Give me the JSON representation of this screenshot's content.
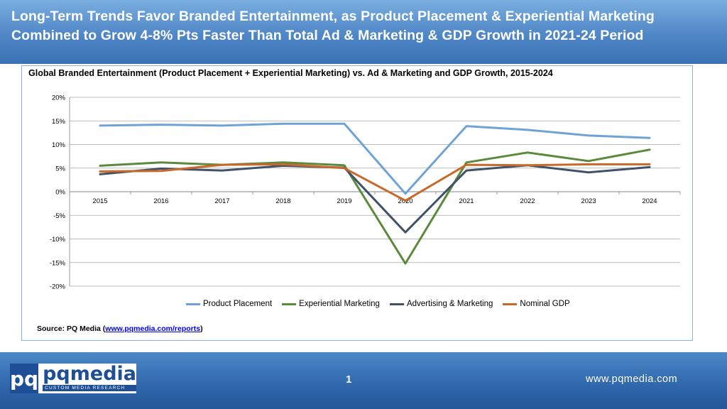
{
  "header": {
    "title": "Long-Term Trends Favor Branded Entertainment, as Product Placement & Experiential Marketing Combined to Grow 4-8% Pts Faster Than Total Ad & Marketing & GDP Growth in 2021-24 Period"
  },
  "chart_data": {
    "type": "line",
    "title": "Global Branded Entertainment (Product Placement + Experiential Marketing) vs. Ad & Marketing and GDP Growth, 2015-2024",
    "xlabel": "",
    "ylabel": "",
    "categories": [
      "2015",
      "2016",
      "2017",
      "2018",
      "2019",
      "2020",
      "2021",
      "2022",
      "2023",
      "2024"
    ],
    "ylim": [
      -20,
      20
    ],
    "yticks": [
      20,
      15,
      10,
      5,
      0,
      -5,
      -10,
      -15,
      -20
    ],
    "ytick_labels": [
      "20%",
      "15%",
      "10%",
      "5%",
      "0%",
      "-5%",
      "-10%",
      "-15%",
      "-20%"
    ],
    "grid": true,
    "legend_position": "bottom",
    "series": [
      {
        "name": "Product Placement",
        "color": "#6fa3d6",
        "values": [
          14.0,
          14.2,
          14.0,
          14.4,
          14.4,
          -0.4,
          13.9,
          13.1,
          11.9,
          11.4
        ]
      },
      {
        "name": "Experiential Marketing",
        "color": "#5b8a3c",
        "values": [
          5.5,
          6.2,
          5.7,
          6.2,
          5.6,
          -15.2,
          6.2,
          8.3,
          6.5,
          8.9
        ]
      },
      {
        "name": "Advertising & Marketing",
        "color": "#3f5269",
        "values": [
          3.7,
          4.9,
          4.5,
          5.5,
          5.1,
          -8.6,
          4.5,
          5.6,
          4.1,
          5.2
        ]
      },
      {
        "name": "Nominal GDP",
        "color": "#c8692c",
        "values": [
          4.3,
          4.4,
          5.7,
          5.8,
          5.0,
          -1.9,
          5.7,
          5.6,
          5.8,
          5.8
        ]
      }
    ]
  },
  "source": {
    "prefix": "Source: PQ Media (",
    "link": "www.pqmedia.com/reports",
    "suffix": ")"
  },
  "footer": {
    "logo_mark": "pq",
    "logo_name": "pqmedia",
    "logo_tagline": "CUSTOM MEDIA RESEARCH",
    "page_number": "1",
    "website": "www.pqmedia.com"
  }
}
